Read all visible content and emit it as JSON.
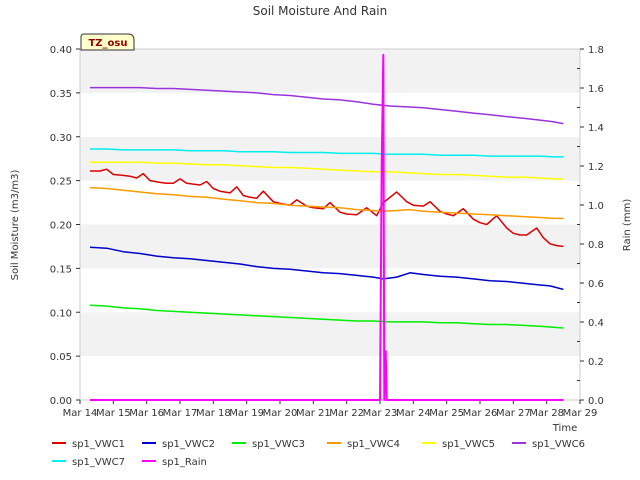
{
  "chart_data": {
    "type": "line",
    "title": "Soil Moisture And Rain",
    "xlabel": "Time",
    "ylabel_left": "Soil Moisture (m3/m3)",
    "ylabel_right": "Rain (mm)",
    "site_label": "TZ_osu",
    "x_range": [
      14,
      29
    ],
    "x_ticks": [
      {
        "v": 14,
        "label": "Mar 14"
      },
      {
        "v": 15,
        "label": "Mar 15"
      },
      {
        "v": 16,
        "label": "Mar 16"
      },
      {
        "v": 17,
        "label": "Mar 17"
      },
      {
        "v": 18,
        "label": "Mar 18"
      },
      {
        "v": 19,
        "label": "Mar 19"
      },
      {
        "v": 20,
        "label": "Mar 20"
      },
      {
        "v": 21,
        "label": "Mar 21"
      },
      {
        "v": 22,
        "label": "Mar 22"
      },
      {
        "v": 23,
        "label": "Mar 23"
      },
      {
        "v": 24,
        "label": "Mar 24"
      },
      {
        "v": 25,
        "label": "Mar 25"
      },
      {
        "v": 26,
        "label": "Mar 26"
      },
      {
        "v": 27,
        "label": "Mar 27"
      },
      {
        "v": 28,
        "label": "Mar 28"
      },
      {
        "v": 29,
        "label": "Mar 29"
      }
    ],
    "ylim_left": [
      0,
      0.4
    ],
    "yticks_left": [
      "0.00",
      "0.05",
      "0.10",
      "0.15",
      "0.20",
      "0.25",
      "0.30",
      "0.35",
      "0.40"
    ],
    "ylim_right": [
      0,
      1.8
    ],
    "yticks_right": [
      "0.0",
      "0.2",
      "0.4",
      "0.6",
      "0.8",
      "1.0",
      "1.2",
      "1.4",
      "1.6",
      "1.8"
    ],
    "series": [
      {
        "name": "sp1_VWC1",
        "color": "#dd0000",
        "axis": "left",
        "x": [
          14.3,
          14.6,
          14.8,
          15.0,
          15.3,
          15.5,
          15.7,
          15.9,
          16.1,
          16.4,
          16.6,
          16.8,
          17.0,
          17.2,
          17.4,
          17.6,
          17.8,
          18.0,
          18.2,
          18.5,
          18.7,
          18.9,
          19.1,
          19.3,
          19.5,
          19.8,
          20.0,
          20.3,
          20.5,
          20.8,
          21.0,
          21.3,
          21.5,
          21.8,
          22.0,
          22.3,
          22.6,
          22.9,
          23.1,
          23.3,
          23.5,
          23.8,
          24.0,
          24.3,
          24.5,
          24.8,
          25.0,
          25.2,
          25.5,
          25.8,
          26.0,
          26.2,
          26.5,
          26.8,
          27.0,
          27.2,
          27.4,
          27.7,
          27.9,
          28.1,
          28.3,
          28.5
        ],
        "y": [
          0.261,
          0.261,
          0.263,
          0.257,
          0.256,
          0.255,
          0.253,
          0.258,
          0.25,
          0.248,
          0.247,
          0.247,
          0.252,
          0.247,
          0.246,
          0.245,
          0.249,
          0.241,
          0.238,
          0.236,
          0.243,
          0.233,
          0.231,
          0.23,
          0.238,
          0.226,
          0.224,
          0.222,
          0.228,
          0.221,
          0.219,
          0.218,
          0.225,
          0.214,
          0.212,
          0.211,
          0.219,
          0.21,
          0.225,
          0.231,
          0.237,
          0.226,
          0.222,
          0.221,
          0.226,
          0.215,
          0.212,
          0.21,
          0.218,
          0.206,
          0.202,
          0.2,
          0.21,
          0.196,
          0.19,
          0.188,
          0.188,
          0.196,
          0.185,
          0.178,
          0.176,
          0.175
        ]
      },
      {
        "name": "sp1_VWC2",
        "color": "#0000cc",
        "axis": "left",
        "x": [
          14.3,
          14.8,
          15.3,
          15.8,
          16.3,
          16.8,
          17.3,
          17.8,
          18.3,
          18.8,
          19.3,
          19.8,
          20.3,
          20.8,
          21.3,
          21.8,
          22.3,
          22.8,
          23.1,
          23.5,
          23.9,
          24.3,
          24.8,
          25.3,
          25.8,
          26.3,
          26.8,
          27.3,
          27.8,
          28.1,
          28.5
        ],
        "y": [
          0.174,
          0.173,
          0.169,
          0.167,
          0.164,
          0.162,
          0.161,
          0.159,
          0.157,
          0.155,
          0.152,
          0.15,
          0.149,
          0.147,
          0.145,
          0.144,
          0.142,
          0.14,
          0.138,
          0.14,
          0.145,
          0.143,
          0.141,
          0.14,
          0.138,
          0.136,
          0.135,
          0.133,
          0.131,
          0.13,
          0.126
        ]
      },
      {
        "name": "sp1_VWC3",
        "color": "#00ee00",
        "axis": "left",
        "x": [
          14.3,
          14.8,
          15.3,
          15.8,
          16.3,
          16.8,
          17.3,
          17.8,
          18.3,
          18.8,
          19.3,
          19.8,
          20.3,
          20.8,
          21.3,
          21.8,
          22.3,
          22.8,
          23.3,
          23.8,
          24.3,
          24.8,
          25.3,
          25.8,
          26.3,
          26.8,
          27.3,
          27.8,
          28.2,
          28.5
        ],
        "y": [
          0.108,
          0.107,
          0.105,
          0.104,
          0.102,
          0.101,
          0.1,
          0.099,
          0.098,
          0.097,
          0.096,
          0.095,
          0.094,
          0.093,
          0.092,
          0.091,
          0.09,
          0.09,
          0.089,
          0.089,
          0.089,
          0.088,
          0.088,
          0.087,
          0.086,
          0.086,
          0.085,
          0.084,
          0.083,
          0.082
        ]
      },
      {
        "name": "sp1_VWC4",
        "color": "#ff9900",
        "axis": "left",
        "x": [
          14.3,
          14.8,
          15.3,
          15.8,
          16.3,
          16.8,
          17.3,
          17.8,
          18.3,
          18.8,
          19.3,
          19.8,
          20.3,
          20.8,
          21.3,
          21.8,
          22.3,
          22.8,
          23.1,
          23.5,
          23.9,
          24.3,
          24.8,
          25.3,
          25.8,
          26.3,
          26.8,
          27.3,
          27.8,
          28.2,
          28.5
        ],
        "y": [
          0.242,
          0.241,
          0.239,
          0.237,
          0.235,
          0.234,
          0.232,
          0.231,
          0.229,
          0.227,
          0.225,
          0.224,
          0.222,
          0.221,
          0.22,
          0.219,
          0.217,
          0.216,
          0.215,
          0.216,
          0.217,
          0.215,
          0.214,
          0.213,
          0.212,
          0.211,
          0.21,
          0.209,
          0.208,
          0.207,
          0.207
        ]
      },
      {
        "name": "sp1_VWC5",
        "color": "#ffff00",
        "axis": "left",
        "x": [
          14.3,
          14.8,
          15.3,
          15.8,
          16.3,
          16.8,
          17.3,
          17.8,
          18.3,
          18.8,
          19.3,
          19.8,
          20.3,
          20.8,
          21.3,
          21.8,
          22.3,
          22.8,
          23.3,
          23.8,
          24.3,
          24.8,
          25.3,
          25.8,
          26.3,
          26.8,
          27.3,
          27.8,
          28.2,
          28.5
        ],
        "y": [
          0.271,
          0.271,
          0.271,
          0.271,
          0.27,
          0.27,
          0.269,
          0.268,
          0.268,
          0.267,
          0.266,
          0.265,
          0.265,
          0.264,
          0.263,
          0.262,
          0.261,
          0.26,
          0.26,
          0.259,
          0.258,
          0.257,
          0.257,
          0.256,
          0.255,
          0.254,
          0.254,
          0.253,
          0.252,
          0.252
        ]
      },
      {
        "name": "sp1_VWC6",
        "color": "#9933dd",
        "axis": "left",
        "x": [
          14.3,
          14.8,
          15.3,
          15.8,
          16.3,
          16.8,
          17.3,
          17.8,
          18.3,
          18.8,
          19.3,
          19.8,
          20.3,
          20.8,
          21.3,
          21.8,
          22.3,
          22.8,
          23.3,
          23.8,
          24.3,
          24.8,
          25.3,
          25.8,
          26.3,
          26.8,
          27.3,
          27.8,
          28.2,
          28.5
        ],
        "y": [
          0.356,
          0.356,
          0.356,
          0.356,
          0.355,
          0.355,
          0.354,
          0.353,
          0.352,
          0.351,
          0.35,
          0.348,
          0.347,
          0.345,
          0.343,
          0.342,
          0.34,
          0.337,
          0.335,
          0.334,
          0.333,
          0.331,
          0.329,
          0.327,
          0.325,
          0.323,
          0.321,
          0.319,
          0.317,
          0.315
        ]
      },
      {
        "name": "sp1_VWC7",
        "color": "#00eeee",
        "axis": "left",
        "x": [
          14.3,
          14.8,
          15.3,
          15.8,
          16.3,
          16.8,
          17.3,
          17.8,
          18.3,
          18.8,
          19.3,
          19.8,
          20.3,
          20.8,
          21.3,
          21.8,
          22.3,
          22.8,
          23.3,
          23.8,
          24.3,
          24.8,
          25.3,
          25.8,
          26.3,
          26.8,
          27.3,
          27.8,
          28.2,
          28.5
        ],
        "y": [
          0.286,
          0.286,
          0.285,
          0.285,
          0.285,
          0.285,
          0.284,
          0.284,
          0.284,
          0.283,
          0.283,
          0.283,
          0.282,
          0.282,
          0.282,
          0.281,
          0.281,
          0.281,
          0.28,
          0.28,
          0.28,
          0.279,
          0.279,
          0.279,
          0.278,
          0.278,
          0.278,
          0.278,
          0.277,
          0.277
        ]
      },
      {
        "name": "sp1_Rain",
        "color": "#ff00ff",
        "axis": "right",
        "x": [
          14.3,
          23.0,
          23.05,
          23.1,
          23.13,
          23.17,
          23.2,
          23.25,
          28.5
        ],
        "y": [
          0.0,
          0.0,
          1.2,
          1.77,
          0.0,
          0.25,
          0.0,
          0.0,
          0.0
        ]
      }
    ],
    "legend_position": "bottom",
    "grid": "horizontal bands"
  }
}
